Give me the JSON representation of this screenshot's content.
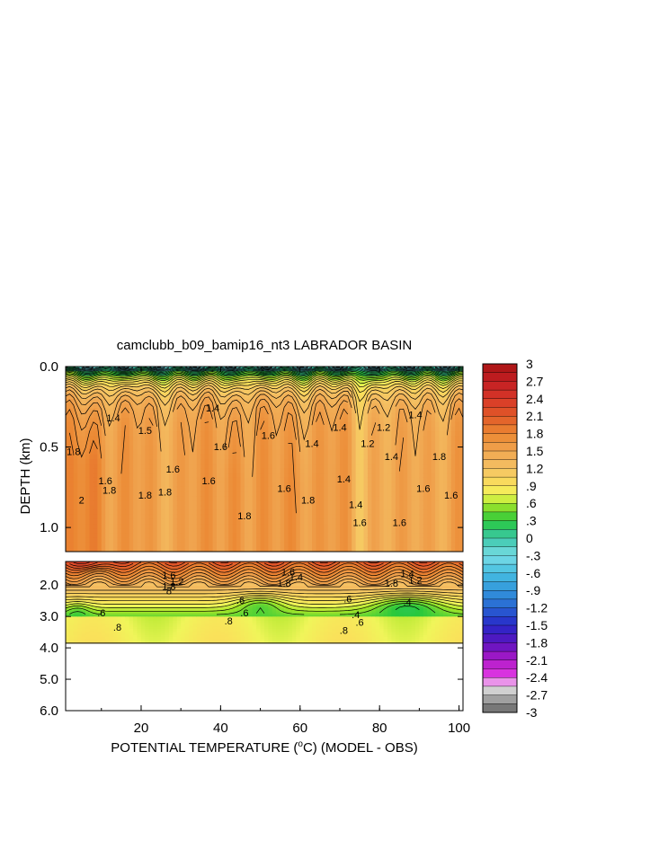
{
  "chart_data": {
    "type": "heatmap",
    "title": "camclubb_b09_bamip16_nt3 LABRADOR BASIN",
    "xlabel_prefix": "POTENTIAL TEMPERATURE (",
    "xlabel_degree": "o",
    "xlabel_suffix": "C) (MODEL - OBS)",
    "ylabel": "DEPTH (km)",
    "xlim": [
      1,
      101
    ],
    "x_ticks": [
      "20",
      "40",
      "60",
      "80",
      "100"
    ],
    "x_tick_values": [
      20,
      40,
      60,
      80,
      100
    ],
    "upper_panel": {
      "ylim": [
        0.0,
        1.15
      ],
      "y_ticks": [
        "0.0",
        "0.5",
        "1.0"
      ],
      "y_tick_values": [
        0.0,
        0.5,
        1.0
      ]
    },
    "lower_panel": {
      "ylim": [
        1.25,
        6.0
      ],
      "y_ticks": [
        "2.0",
        "3.0",
        "4.0",
        "5.0",
        "6.0"
      ],
      "y_tick_values": [
        2.0,
        3.0,
        4.0,
        5.0,
        6.0
      ],
      "data_bottom_depth": 3.85
    },
    "colorbar": {
      "min": -3,
      "max": 3,
      "step": 0.15,
      "labels": [
        "3",
        "2.7",
        "2.4",
        "2.1",
        "1.8",
        "1.5",
        "1.2",
        ".9",
        ".6",
        ".3",
        "0",
        "-.3",
        "-.6",
        "-.9",
        "-1.2",
        "-1.5",
        "-1.8",
        "-2.1",
        "-2.4",
        "-2.7",
        "-3"
      ],
      "label_values": [
        3,
        2.7,
        2.4,
        2.1,
        1.8,
        1.5,
        1.2,
        0.9,
        0.6,
        0.3,
        0,
        -0.3,
        -0.6,
        -0.9,
        -1.2,
        -1.5,
        -1.8,
        -2.1,
        -2.4,
        -2.7,
        -3
      ]
    },
    "contour_labels_upper": [
      {
        "text": "1.4",
        "x": 13,
        "depth": 0.34
      },
      {
        "text": "1.6",
        "x": 11,
        "depth": 0.73
      },
      {
        "text": "1.8",
        "x": 12,
        "depth": 0.79
      },
      {
        "text": "2",
        "x": 5,
        "depth": 0.85
      },
      {
        "text": "1.8",
        "x": 3,
        "depth": 0.55
      },
      {
        "text": "1.5",
        "x": 21,
        "depth": 0.42
      },
      {
        "text": "1.8",
        "x": 21,
        "depth": 0.82
      },
      {
        "text": "1.6",
        "x": 28,
        "depth": 0.66
      },
      {
        "text": "1.8",
        "x": 26,
        "depth": 0.8
      },
      {
        "text": "1.4",
        "x": 38,
        "depth": 0.28
      },
      {
        "text": "1.6",
        "x": 40,
        "depth": 0.52
      },
      {
        "text": "1.6",
        "x": 37,
        "depth": 0.73
      },
      {
        "text": "1.8",
        "x": 46,
        "depth": 0.95
      },
      {
        "text": "1.6",
        "x": 52,
        "depth": 0.45
      },
      {
        "text": "1.6",
        "x": 56,
        "depth": 0.78
      },
      {
        "text": "1.4",
        "x": 63,
        "depth": 0.5
      },
      {
        "text": "1.8",
        "x": 62,
        "depth": 0.85
      },
      {
        "text": "1.4",
        "x": 70,
        "depth": 0.4
      },
      {
        "text": "1.4",
        "x": 71,
        "depth": 0.72
      },
      {
        "text": "1.4",
        "x": 74,
        "depth": 0.88
      },
      {
        "text": "1.6",
        "x": 75,
        "depth": 0.99
      },
      {
        "text": "1.2",
        "x": 77,
        "depth": 0.5
      },
      {
        "text": "1.2",
        "x": 81,
        "depth": 0.4
      },
      {
        "text": "1.4",
        "x": 83,
        "depth": 0.58
      },
      {
        "text": "1.6",
        "x": 85,
        "depth": 0.99
      },
      {
        "text": "1.6",
        "x": 91,
        "depth": 0.78
      },
      {
        "text": "1.4",
        "x": 89,
        "depth": 0.32
      },
      {
        "text": "1.8",
        "x": 95,
        "depth": 0.58
      },
      {
        "text": "1.6",
        "x": 98,
        "depth": 0.82
      }
    ],
    "contour_labels_lower": [
      {
        "text": "1.6",
        "x": 27,
        "depth": 1.8
      },
      {
        "text": "1.8",
        "x": 27,
        "depth": 2.15
      },
      {
        "text": "1.2",
        "x": 29,
        "depth": 2.0
      },
      {
        "text": "8",
        "x": 27,
        "depth": 2.3
      },
      {
        "text": "1.6",
        "x": 57,
        "depth": 1.7
      },
      {
        "text": "1.8",
        "x": 56,
        "depth": 2.05
      },
      {
        "text": "1.4",
        "x": 59,
        "depth": 1.85
      },
      {
        "text": "1.4",
        "x": 87,
        "depth": 1.75
      },
      {
        "text": "1.8",
        "x": 83,
        "depth": 2.05
      },
      {
        "text": "1.2",
        "x": 89,
        "depth": 1.95
      },
      {
        "text": ".6",
        "x": 45,
        "depth": 2.6
      },
      {
        "text": ".6",
        "x": 10,
        "depth": 3.0
      },
      {
        "text": ".8",
        "x": 14,
        "depth": 3.45
      },
      {
        "text": ".8",
        "x": 42,
        "depth": 3.25
      },
      {
        "text": ".6",
        "x": 46,
        "depth": 3.0
      },
      {
        "text": ".6",
        "x": 72,
        "depth": 2.55
      },
      {
        "text": ".4",
        "x": 87,
        "depth": 2.65
      },
      {
        "text": ".4",
        "x": 74,
        "depth": 3.05
      },
      {
        "text": ".6",
        "x": 75,
        "depth": 3.3
      },
      {
        "text": ".8",
        "x": 71,
        "depth": 3.55
      }
    ]
  }
}
